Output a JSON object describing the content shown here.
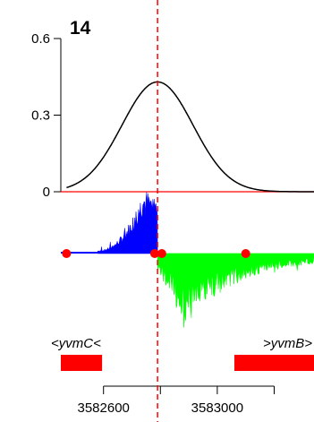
{
  "chart_data": {
    "type": "line",
    "panel_label": "14",
    "y_axis": {
      "ticks": [
        0,
        0.3,
        0.6
      ],
      "tick_labels": [
        "0",
        "0.3",
        "0.6"
      ],
      "ylim": [
        0,
        0.6
      ]
    },
    "x_axis": {
      "ticks": [
        3582600,
        3582800,
        3583000,
        3583200
      ],
      "tick_labels": [
        "3582600",
        "3583000"
      ],
      "xlim": [
        3582450,
        3583340
      ]
    },
    "density_curve": {
      "color": "#000000",
      "center": 3582790,
      "sd": 125,
      "peak": 0.43
    },
    "zero_line": {
      "color": "#ff0000",
      "y": 0
    },
    "marker_line": {
      "color": "#ff0000",
      "x": 3582790,
      "style": "dashed"
    },
    "coverage_plus": {
      "color": "#0000ff",
      "x_start": 3582580,
      "x_end": 3582790,
      "peak_x": 3582740
    },
    "coverage_minus": {
      "color": "#00ff00",
      "x_start": 3582790,
      "x_end": 3583340,
      "peak_x": 3582880
    },
    "red_points": {
      "color": "#ff0000",
      "x": [
        3582470,
        3582780,
        3582805,
        3583100
      ]
    },
    "genes": [
      {
        "name": "<yvmC<",
        "color": "#ff0000",
        "start": 3582450,
        "end": 3582595
      },
      {
        "name": ">yvmB>",
        "color": "#ff0000",
        "start": 3583060,
        "end": 3583340
      }
    ]
  }
}
